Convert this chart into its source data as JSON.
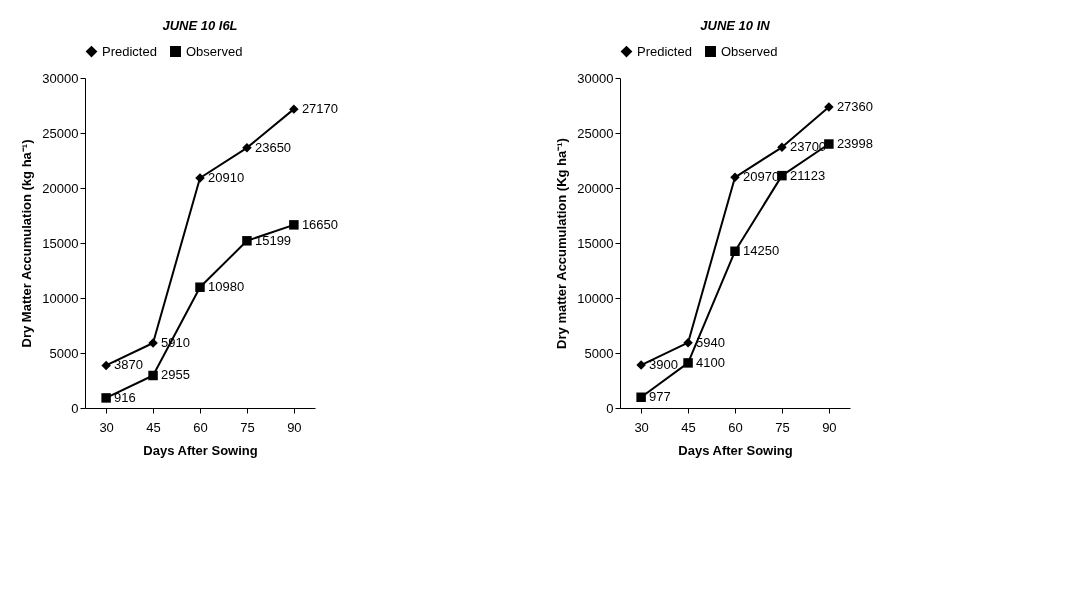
{
  "chart_data": [
    {
      "type": "line",
      "title": "JUNE 10 I6L",
      "xlabel": "Days After Sowing",
      "ylabel": "Dry Matter Accumulation (kg ha⁻¹)",
      "categories": [
        "30",
        "45",
        "60",
        "75",
        "90"
      ],
      "series": [
        {
          "name": "Predicted",
          "color": "#000000",
          "marker": "diamond",
          "values": [
            3870,
            5910,
            20910,
            23650,
            27170
          ]
        },
        {
          "name": "Observed",
          "color": "#000000",
          "marker": "square",
          "values": [
            916,
            2955,
            10980,
            15199,
            16650
          ]
        }
      ],
      "ylim": [
        0,
        30000
      ],
      "yticks": [
        0,
        5000,
        10000,
        15000,
        20000,
        25000,
        30000
      ],
      "grid": false,
      "legend": "top",
      "data_labels": true
    },
    {
      "type": "line",
      "title": "JUNE 10 IN",
      "xlabel": "Days After Sowing",
      "ylabel": "Dry matter Accumulation (Kg ha⁻¹)",
      "categories": [
        "30",
        "45",
        "60",
        "75",
        "90"
      ],
      "series": [
        {
          "name": "Predicted",
          "color": "#000000",
          "marker": "diamond",
          "values": [
            3900,
            5940,
            20970,
            23700,
            27360
          ]
        },
        {
          "name": "Observed",
          "color": "#000000",
          "marker": "square",
          "values": [
            977,
            4100,
            14250,
            21123,
            23998
          ]
        }
      ],
      "ylim": [
        0,
        30000
      ],
      "yticks": [
        0,
        5000,
        10000,
        15000,
        20000,
        25000,
        30000
      ],
      "grid": false,
      "legend": "top",
      "data_labels": true
    }
  ]
}
